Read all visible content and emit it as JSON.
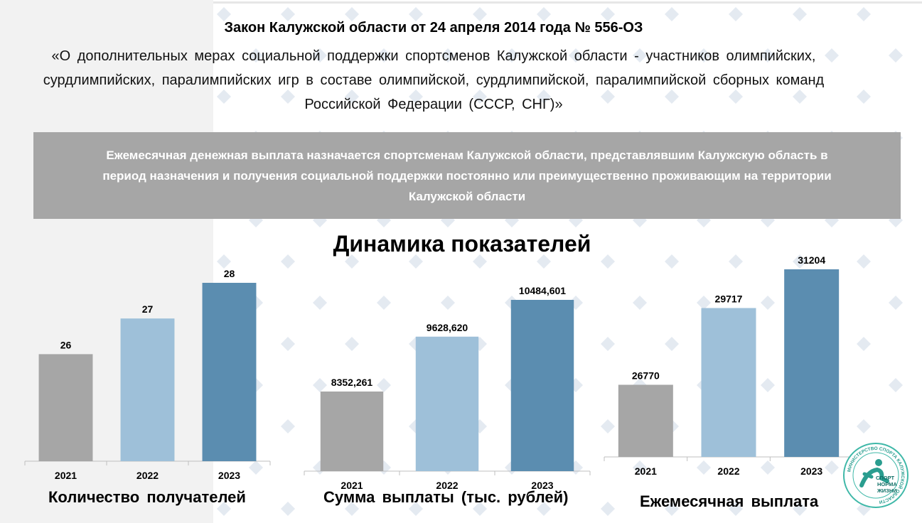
{
  "header": {
    "law_title": "Закон Калужской области от 24 апреля 2014 года № 556-ОЗ",
    "law_subtitle": "«О дополнительных мерах социальной поддержки спортсменов Калужской области - участников олимпийских, сурдлимпийских, паралимпийских игр в составе олимпийской, сурдлимпийской, паралимпийской сборных команд Российской Федерации (СССР, СНГ)»"
  },
  "banner": {
    "text": "Ежемесячная денежная выплата назначается спортсменам Калужской области, представлявшим Калужскую область в период назначения и получения социальной поддержки постоянно или преимущественно проживающим на территории Калужской области"
  },
  "section_title": "Динамика показателей",
  "colors": {
    "bar_2021": "#a6a6a6",
    "bar_2022": "#9ec0d9",
    "bar_2023": "#5b8db0",
    "banner": "#a6a6a6"
  },
  "logo": {
    "icon": "runner-logo-icon",
    "ring_text": "МИНИСТЕРСТВО СПОРТА КАЛУЖСКОЙ ОБЛАСТИ",
    "slogan_line1": "СПОРТ",
    "slogan_line2": "НОРМА",
    "slogan_line3": "ЖИЗНИ"
  },
  "chart_data": [
    {
      "type": "bar",
      "title": "Количество получателей",
      "categories": [
        "2021",
        "2022",
        "2023"
      ],
      "values": [
        26,
        27,
        28
      ],
      "labels": [
        "26",
        "27",
        "28"
      ],
      "ylim": [
        23,
        28.8
      ]
    },
    {
      "type": "bar",
      "title": "Сумма выплаты (тыс. рублей)",
      "categories": [
        "2021",
        "2022",
        "2023"
      ],
      "values": [
        8352.261,
        9628.62,
        10484.601
      ],
      "labels": [
        "8352,261",
        "9628,620",
        "10484,601"
      ],
      "ylim": [
        6500,
        10800
      ]
    },
    {
      "type": "bar",
      "title": "Ежемесячная выплата",
      "categories": [
        "2021",
        "2022",
        "2023"
      ],
      "values": [
        26770,
        29717,
        31204
      ],
      "labels": [
        "26770",
        "29717",
        "31204"
      ],
      "ylim": [
        24000,
        31700
      ]
    }
  ]
}
